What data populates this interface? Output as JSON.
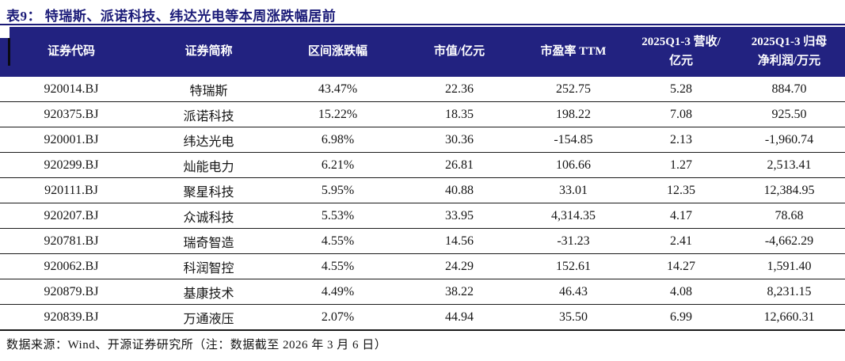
{
  "title": "表9：  特瑞斯、派诺科技、纬达光电等本周涨跌幅居前",
  "colors": {
    "header_band": "#222280",
    "title_navy": "#1b1b78",
    "rule_black": "#1a1a1a"
  },
  "table": {
    "headers": [
      {
        "lines": [
          "证券代码"
        ]
      },
      {
        "lines": [
          "证券简称"
        ]
      },
      {
        "lines": [
          "区间涨跌幅"
        ]
      },
      {
        "lines": [
          "市值/亿元"
        ]
      },
      {
        "lines": [
          "市盈率 TTM"
        ]
      },
      {
        "lines": [
          "2025Q1-3 营收/",
          "亿元"
        ]
      },
      {
        "lines": [
          "2025Q1-3 归母",
          "净利润/万元"
        ]
      }
    ],
    "rows": [
      [
        "920014.BJ",
        "特瑞斯",
        "43.47%",
        "22.36",
        "252.75",
        "5.28",
        "884.70"
      ],
      [
        "920375.BJ",
        "派诺科技",
        "15.22%",
        "18.35",
        "198.22",
        "7.08",
        "925.50"
      ],
      [
        "920001.BJ",
        "纬达光电",
        "6.98%",
        "30.36",
        "-154.85",
        "2.13",
        "-1,960.74"
      ],
      [
        "920299.BJ",
        "灿能电力",
        "6.21%",
        "26.81",
        "106.66",
        "1.27",
        "2,513.41"
      ],
      [
        "920111.BJ",
        "聚星科技",
        "5.95%",
        "40.88",
        "33.01",
        "12.35",
        "12,384.95"
      ],
      [
        "920207.BJ",
        "众诚科技",
        "5.53%",
        "33.95",
        "4,314.35",
        "4.17",
        "78.68"
      ],
      [
        "920781.BJ",
        "瑞奇智造",
        "4.55%",
        "14.56",
        "-31.23",
        "2.41",
        "-4,662.29"
      ],
      [
        "920062.BJ",
        "科润智控",
        "4.55%",
        "24.29",
        "152.61",
        "14.27",
        "1,591.40"
      ],
      [
        "920879.BJ",
        "基康技术",
        "4.49%",
        "38.22",
        "46.43",
        "4.08",
        "8,231.15"
      ],
      [
        "920839.BJ",
        "万通液压",
        "2.07%",
        "44.94",
        "35.50",
        "6.99",
        "12,660.31"
      ]
    ]
  },
  "footer": {
    "source_note": "数据来源：Wind、开源证券研究所（注：数据截至 2026 年 3 月 6 日）"
  }
}
